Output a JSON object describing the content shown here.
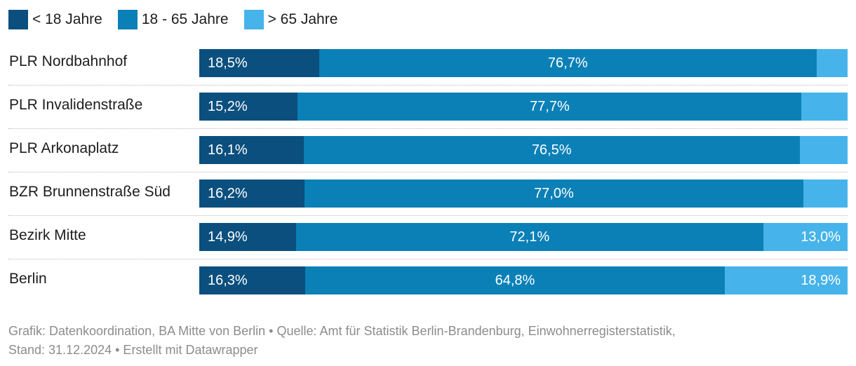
{
  "chart_data": {
    "type": "bar",
    "orientation": "horizontal",
    "stacked": true,
    "categories": [
      "PLR Nordbahnhof",
      "PLR Invalidenstraße",
      "PLR Arkonaplatz",
      "BZR Brunnenstraße Süd",
      "Bezirk Mitte",
      "Berlin"
    ],
    "series": [
      {
        "name": "< 18 Jahre",
        "color": "#0a4f7e",
        "values": [
          18.5,
          15.2,
          16.1,
          16.2,
          14.9,
          16.3
        ]
      },
      {
        "name": "18 - 65 Jahre",
        "color": "#0a80b7",
        "values": [
          76.7,
          77.7,
          76.5,
          77.0,
          72.1,
          64.8
        ]
      },
      {
        "name": "> 65 Jahre",
        "color": "#46b3ea",
        "values": [
          4.8,
          7.1,
          7.4,
          6.8,
          13.0,
          18.9
        ]
      }
    ],
    "value_labels": [
      [
        "18,5%",
        "76,7%",
        ""
      ],
      [
        "15,2%",
        "77,7%",
        ""
      ],
      [
        "16,1%",
        "76,5%",
        ""
      ],
      [
        "16,2%",
        "77,0%",
        ""
      ],
      [
        "14,9%",
        "72,1%",
        "13,0%"
      ],
      [
        "16,3%",
        "64,8%",
        "18,9%"
      ]
    ],
    "xlim": [
      0,
      100
    ],
    "legend_position": "top-left",
    "grid": false,
    "title": "",
    "xlabel": "",
    "ylabel": ""
  },
  "footer": {
    "line1": "Grafik: Datenkoordination, BA Mitte von Berlin • Quelle: Amt für Statistik Berlin-Brandenburg, Einwohnerregisterstatistik,",
    "line2": "Stand: 31.12.2024 • Erstellt mit Datawrapper"
  }
}
